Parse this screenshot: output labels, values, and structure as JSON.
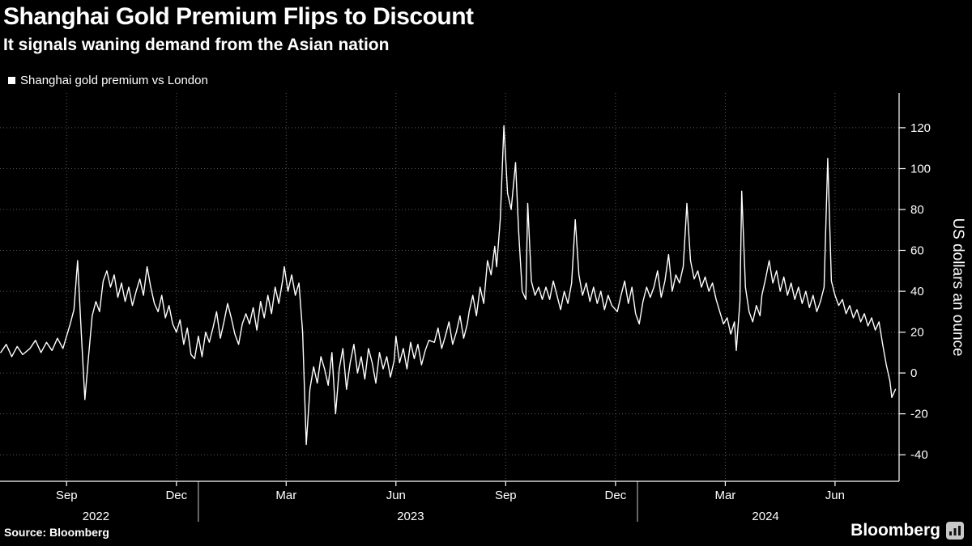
{
  "header": {
    "title": "Shanghai Gold Premium Flips to Discount",
    "subtitle": "It signals waning demand from the Asian nation"
  },
  "legend": {
    "label": "Shanghai gold premium vs London"
  },
  "footer": {
    "source": "Source: Bloomberg",
    "brand": "Bloomberg"
  },
  "colors": {
    "background": "#000000",
    "text": "#ffffff",
    "line": "#ffffff",
    "grid": "#5a5a5a",
    "axis": "#ffffff"
  },
  "chart_data": {
    "type": "line",
    "title": "Shanghai Gold Premium Flips to Discount",
    "subtitle": "It signals waning demand from the Asian nation",
    "grid": true,
    "line_color": "#ffffff",
    "grid_color": "#5a5a5a",
    "axis_color": "#ffffff",
    "text_color": "#ffffff",
    "legend_position": "top-left",
    "x_axis": {
      "t_unit": "months since 2022-07-01",
      "start": 0.18,
      "end": 24.75,
      "ticks": [
        {
          "t": 2,
          "label": "Sep"
        },
        {
          "t": 5,
          "label": "Dec"
        },
        {
          "t": 8,
          "label": "Mar"
        },
        {
          "t": 11,
          "label": "Jun"
        },
        {
          "t": 14,
          "label": "Sep"
        },
        {
          "t": 17,
          "label": "Dec"
        },
        {
          "t": 20,
          "label": "Mar"
        },
        {
          "t": 23,
          "label": "Jun"
        }
      ],
      "year_separators": [
        5.6,
        17.6
      ],
      "year_labels": [
        {
          "t": 2.8,
          "label": "2022"
        },
        {
          "t": 11.4,
          "label": "2023"
        },
        {
          "t": 21.1,
          "label": "2024"
        }
      ]
    },
    "y_axis": {
      "label": "US dollars an ounce",
      "side": "right",
      "min": -53,
      "max": 137,
      "ticks": [
        -40,
        -20,
        0,
        20,
        40,
        60,
        80,
        100,
        120
      ]
    },
    "series": [
      {
        "name": "Shanghai gold premium vs London",
        "points": [
          [
            0.2,
            10
          ],
          [
            0.35,
            14
          ],
          [
            0.5,
            8
          ],
          [
            0.65,
            13
          ],
          [
            0.8,
            9
          ],
          [
            1.0,
            12
          ],
          [
            1.15,
            16
          ],
          [
            1.3,
            10
          ],
          [
            1.45,
            15
          ],
          [
            1.6,
            11
          ],
          [
            1.75,
            17
          ],
          [
            1.9,
            12
          ],
          [
            2.0,
            18
          ],
          [
            2.1,
            24
          ],
          [
            2.2,
            31
          ],
          [
            2.3,
            55
          ],
          [
            2.4,
            20
          ],
          [
            2.5,
            -13
          ],
          [
            2.6,
            8
          ],
          [
            2.7,
            28
          ],
          [
            2.8,
            35
          ],
          [
            2.9,
            30
          ],
          [
            3.0,
            45
          ],
          [
            3.1,
            50
          ],
          [
            3.2,
            42
          ],
          [
            3.3,
            48
          ],
          [
            3.4,
            37
          ],
          [
            3.5,
            44
          ],
          [
            3.6,
            35
          ],
          [
            3.7,
            42
          ],
          [
            3.8,
            33
          ],
          [
            3.9,
            40
          ],
          [
            4.0,
            46
          ],
          [
            4.1,
            38
          ],
          [
            4.2,
            52
          ],
          [
            4.3,
            42
          ],
          [
            4.4,
            34
          ],
          [
            4.5,
            30
          ],
          [
            4.6,
            38
          ],
          [
            4.7,
            27
          ],
          [
            4.8,
            33
          ],
          [
            4.9,
            24
          ],
          [
            5.0,
            20
          ],
          [
            5.1,
            26
          ],
          [
            5.2,
            14
          ],
          [
            5.3,
            22
          ],
          [
            5.4,
            9
          ],
          [
            5.5,
            7
          ],
          [
            5.6,
            18
          ],
          [
            5.7,
            8
          ],
          [
            5.8,
            20
          ],
          [
            5.9,
            15
          ],
          [
            6.0,
            22
          ],
          [
            6.1,
            30
          ],
          [
            6.2,
            17
          ],
          [
            6.3,
            25
          ],
          [
            6.4,
            34
          ],
          [
            6.5,
            27
          ],
          [
            6.6,
            19
          ],
          [
            6.7,
            14
          ],
          [
            6.8,
            24
          ],
          [
            6.9,
            29
          ],
          [
            7.0,
            24
          ],
          [
            7.1,
            32
          ],
          [
            7.2,
            21
          ],
          [
            7.3,
            35
          ],
          [
            7.4,
            27
          ],
          [
            7.5,
            38
          ],
          [
            7.6,
            29
          ],
          [
            7.7,
            42
          ],
          [
            7.8,
            34
          ],
          [
            7.9,
            45
          ],
          [
            7.95,
            52
          ],
          [
            8.05,
            40
          ],
          [
            8.15,
            48
          ],
          [
            8.25,
            38
          ],
          [
            8.35,
            44
          ],
          [
            8.45,
            20
          ],
          [
            8.55,
            -35
          ],
          [
            8.65,
            -8
          ],
          [
            8.75,
            3
          ],
          [
            8.85,
            -5
          ],
          [
            8.95,
            8
          ],
          [
            9.05,
            2
          ],
          [
            9.15,
            -6
          ],
          [
            9.25,
            10
          ],
          [
            9.35,
            -20
          ],
          [
            9.45,
            2
          ],
          [
            9.55,
            12
          ],
          [
            9.65,
            -8
          ],
          [
            9.75,
            5
          ],
          [
            9.85,
            14
          ],
          [
            9.95,
            0
          ],
          [
            10.05,
            8
          ],
          [
            10.15,
            -3
          ],
          [
            10.25,
            12
          ],
          [
            10.35,
            5
          ],
          [
            10.45,
            -5
          ],
          [
            10.55,
            10
          ],
          [
            10.65,
            2
          ],
          [
            10.75,
            8
          ],
          [
            10.85,
            -2
          ],
          [
            10.95,
            6
          ],
          [
            11.0,
            18
          ],
          [
            11.1,
            5
          ],
          [
            11.2,
            12
          ],
          [
            11.3,
            2
          ],
          [
            11.4,
            15
          ],
          [
            11.5,
            7
          ],
          [
            11.6,
            14
          ],
          [
            11.7,
            4
          ],
          [
            11.8,
            11
          ],
          [
            11.9,
            16
          ],
          [
            12.05,
            15
          ],
          [
            12.15,
            22
          ],
          [
            12.25,
            12
          ],
          [
            12.35,
            18
          ],
          [
            12.45,
            25
          ],
          [
            12.55,
            14
          ],
          [
            12.65,
            20
          ],
          [
            12.75,
            28
          ],
          [
            12.85,
            17
          ],
          [
            12.95,
            24
          ],
          [
            13.0,
            30
          ],
          [
            13.1,
            38
          ],
          [
            13.2,
            28
          ],
          [
            13.3,
            42
          ],
          [
            13.4,
            34
          ],
          [
            13.5,
            55
          ],
          [
            13.6,
            48
          ],
          [
            13.7,
            62
          ],
          [
            13.75,
            52
          ],
          [
            13.85,
            75
          ],
          [
            13.95,
            121
          ],
          [
            14.05,
            88
          ],
          [
            14.15,
            80
          ],
          [
            14.27,
            103
          ],
          [
            14.35,
            70
          ],
          [
            14.45,
            40
          ],
          [
            14.55,
            36
          ],
          [
            14.6,
            83
          ],
          [
            14.7,
            45
          ],
          [
            14.8,
            38
          ],
          [
            14.9,
            42
          ],
          [
            15.0,
            36
          ],
          [
            15.1,
            42
          ],
          [
            15.2,
            36
          ],
          [
            15.3,
            45
          ],
          [
            15.4,
            38
          ],
          [
            15.5,
            31
          ],
          [
            15.6,
            40
          ],
          [
            15.7,
            34
          ],
          [
            15.8,
            44
          ],
          [
            15.9,
            75
          ],
          [
            16.0,
            48
          ],
          [
            16.1,
            38
          ],
          [
            16.2,
            44
          ],
          [
            16.3,
            35
          ],
          [
            16.4,
            42
          ],
          [
            16.5,
            34
          ],
          [
            16.6,
            40
          ],
          [
            16.7,
            31
          ],
          [
            16.8,
            38
          ],
          [
            16.9,
            33
          ],
          [
            17.05,
            30
          ],
          [
            17.15,
            38
          ],
          [
            17.25,
            45
          ],
          [
            17.35,
            34
          ],
          [
            17.45,
            42
          ],
          [
            17.55,
            29
          ],
          [
            17.65,
            24
          ],
          [
            17.75,
            35
          ],
          [
            17.85,
            42
          ],
          [
            17.95,
            37
          ],
          [
            18.05,
            42
          ],
          [
            18.15,
            50
          ],
          [
            18.25,
            37
          ],
          [
            18.35,
            45
          ],
          [
            18.45,
            58
          ],
          [
            18.55,
            40
          ],
          [
            18.65,
            48
          ],
          [
            18.75,
            44
          ],
          [
            18.85,
            52
          ],
          [
            18.95,
            83
          ],
          [
            19.05,
            55
          ],
          [
            19.15,
            46
          ],
          [
            19.25,
            50
          ],
          [
            19.35,
            42
          ],
          [
            19.45,
            47
          ],
          [
            19.55,
            40
          ],
          [
            19.65,
            44
          ],
          [
            19.75,
            36
          ],
          [
            19.85,
            30
          ],
          [
            19.95,
            24
          ],
          [
            20.05,
            27
          ],
          [
            20.15,
            19
          ],
          [
            20.25,
            25
          ],
          [
            20.3,
            11
          ],
          [
            20.4,
            35
          ],
          [
            20.45,
            89
          ],
          [
            20.55,
            42
          ],
          [
            20.65,
            30
          ],
          [
            20.75,
            25
          ],
          [
            20.85,
            33
          ],
          [
            20.95,
            28
          ],
          [
            21.0,
            38
          ],
          [
            21.1,
            46
          ],
          [
            21.2,
            55
          ],
          [
            21.3,
            44
          ],
          [
            21.4,
            50
          ],
          [
            21.5,
            40
          ],
          [
            21.6,
            47
          ],
          [
            21.7,
            38
          ],
          [
            21.8,
            44
          ],
          [
            21.9,
            36
          ],
          [
            22.0,
            42
          ],
          [
            22.1,
            34
          ],
          [
            22.2,
            40
          ],
          [
            22.3,
            32
          ],
          [
            22.4,
            38
          ],
          [
            22.5,
            30
          ],
          [
            22.6,
            35
          ],
          [
            22.7,
            42
          ],
          [
            22.8,
            105
          ],
          [
            22.9,
            45
          ],
          [
            23.0,
            38
          ],
          [
            23.1,
            33
          ],
          [
            23.2,
            36
          ],
          [
            23.3,
            29
          ],
          [
            23.4,
            33
          ],
          [
            23.5,
            27
          ],
          [
            23.6,
            31
          ],
          [
            23.7,
            25
          ],
          [
            23.8,
            29
          ],
          [
            23.9,
            23
          ],
          [
            24.0,
            27
          ],
          [
            24.1,
            21
          ],
          [
            24.2,
            25
          ],
          [
            24.3,
            14
          ],
          [
            24.4,
            4
          ],
          [
            24.5,
            -4
          ],
          [
            24.55,
            -12
          ],
          [
            24.65,
            -8
          ]
        ]
      }
    ]
  }
}
